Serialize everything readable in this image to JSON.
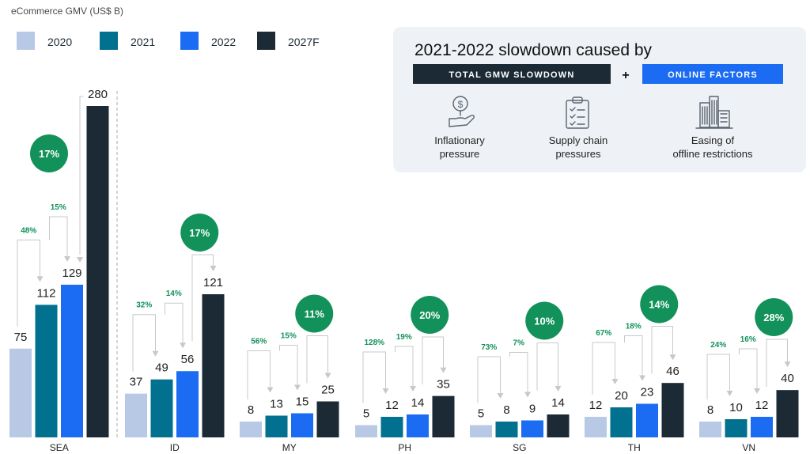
{
  "chart_data": {
    "type": "bar",
    "title": "",
    "ylabel": "eCommerce GMV (US$ B)",
    "xlabel": "",
    "ylim": [
      0,
      280
    ],
    "categories": [
      "SEA",
      "ID",
      "MY",
      "PH",
      "SG",
      "TH",
      "VN"
    ],
    "series": [
      {
        "name": "2020",
        "color": "#b8c9e6",
        "values": [
          75,
          37,
          8,
          5,
          5,
          12,
          8
        ]
      },
      {
        "name": "2021",
        "color": "#02708f",
        "values": [
          112,
          49,
          13,
          12,
          8,
          20,
          10
        ]
      },
      {
        "name": "2022",
        "color": "#1b6cf2",
        "values": [
          129,
          56,
          15,
          14,
          9,
          23,
          12
        ]
      },
      {
        "name": "2027F",
        "color": "#1b2a35",
        "values": [
          280,
          121,
          25,
          35,
          14,
          46,
          40
        ]
      }
    ],
    "growth": {
      "g2020_2021": [
        "48%",
        "32%",
        "56%",
        "128%",
        "73%",
        "67%",
        "24%"
      ],
      "g2021_2022": [
        "15%",
        "14%",
        "15%",
        "19%",
        "7%",
        "18%",
        "16%"
      ],
      "cagr_2022_2027": [
        "17%",
        "17%",
        "11%",
        "20%",
        "10%",
        "14%",
        "28%"
      ]
    },
    "legend_position": "top-left"
  },
  "colors": {
    "growth_green": "#12925a",
    "panel_bg": "#eef2f6",
    "tag_dark": "#1b2a35",
    "tag_blue": "#1b6cf2"
  },
  "panel": {
    "title": "2021-2022 slowdown caused by",
    "tag_left": "TOTAL GMW SLOWDOWN",
    "plus": "+",
    "tag_right": "ONLINE FACTORS",
    "factors": [
      {
        "icon": "inflation-hand-coin-icon",
        "line1": "Inflationary",
        "line2": "pressure"
      },
      {
        "icon": "clipboard-checklist-icon",
        "line1": "Supply chain",
        "line2": "pressures"
      },
      {
        "icon": "office-buildings-icon",
        "line1": "Easing of",
        "line2": "offline restrictions"
      }
    ]
  }
}
